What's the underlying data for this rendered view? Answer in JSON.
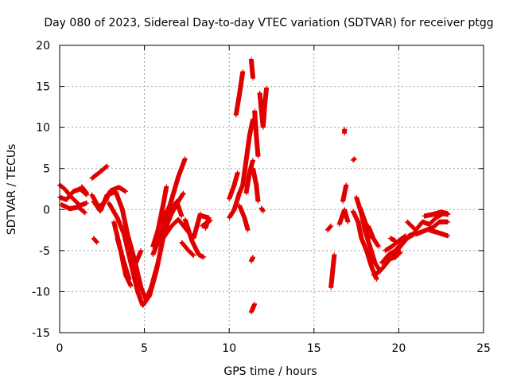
{
  "chart_data": {
    "type": "scatter",
    "title": "Day 080 of 2023, Sidereal Day-to-day VTEC variation (SDTVAR) for receiver ptgg",
    "xlabel": "GPS time / hours",
    "ylabel": "SDTVAR / TECUs",
    "xlim": [
      0,
      25
    ],
    "ylim": [
      -15,
      20
    ],
    "xticks": [
      0,
      5,
      10,
      15,
      20,
      25
    ],
    "yticks": [
      -15,
      -10,
      -5,
      0,
      5,
      10,
      15,
      20
    ],
    "grid": true,
    "marker": "+",
    "series_color": "#e00000",
    "tracks": [
      [
        [
          0.0,
          3.0
        ],
        [
          0.3,
          2.5
        ],
        [
          0.7,
          1.5
        ],
        [
          1.2,
          0.5
        ],
        [
          1.6,
          0.8
        ]
      ],
      [
        [
          0.0,
          1.5
        ],
        [
          0.4,
          1.2
        ],
        [
          0.8,
          2.2
        ],
        [
          1.2,
          2.5
        ],
        [
          1.6,
          1.8
        ]
      ],
      [
        [
          0.1,
          0.6
        ],
        [
          0.6,
          0.1
        ],
        [
          1.1,
          0.3
        ],
        [
          1.5,
          -0.4
        ]
      ],
      [
        [
          1.3,
          2.8
        ],
        [
          1.6,
          2.0
        ]
      ],
      [
        [
          2.0,
          -3.5
        ],
        [
          2.2,
          -4.0
        ]
      ],
      [
        [
          1.9,
          3.8
        ],
        [
          2.4,
          4.6
        ],
        [
          2.8,
          5.3
        ]
      ],
      [
        [
          1.9,
          1.8
        ],
        [
          2.3,
          0.3
        ],
        [
          2.7,
          1.0
        ],
        [
          3.0,
          2.3
        ],
        [
          3.5,
          2.7
        ],
        [
          3.9,
          2.2
        ]
      ],
      [
        [
          2.0,
          1.0
        ],
        [
          2.4,
          -0.2
        ],
        [
          2.8,
          1.8
        ],
        [
          3.2,
          2.1
        ]
      ],
      [
        [
          2.9,
          0.8
        ],
        [
          3.4,
          -1.0
        ],
        [
          3.8,
          -3.0
        ],
        [
          4.2,
          -6.5
        ],
        [
          4.6,
          -10.0
        ],
        [
          4.9,
          -11.7
        ],
        [
          5.3,
          -10.5
        ],
        [
          5.7,
          -7.5
        ],
        [
          6.1,
          -3.5
        ],
        [
          6.5,
          -0.5
        ],
        [
          6.9,
          1.0
        ],
        [
          7.2,
          -0.8
        ]
      ],
      [
        [
          3.3,
          2.2
        ],
        [
          3.7,
          0.0
        ],
        [
          4.0,
          -3.0
        ],
        [
          4.4,
          -6.0
        ],
        [
          4.8,
          -9.5
        ],
        [
          5.1,
          -11.0
        ],
        [
          5.4,
          -9.5
        ],
        [
          5.8,
          -6.5
        ]
      ],
      [
        [
          3.2,
          -1.5
        ],
        [
          3.6,
          -5.0
        ],
        [
          3.9,
          -8.0
        ],
        [
          4.2,
          -9.3
        ]
      ],
      [
        [
          3.4,
          -3.5
        ],
        [
          3.8,
          -6.5
        ],
        [
          4.1,
          -8.5
        ]
      ],
      [
        [
          4.5,
          -6.5
        ],
        [
          4.8,
          -5.0
        ]
      ],
      [
        [
          5.5,
          -4.5
        ],
        [
          5.8,
          -2.5
        ],
        [
          6.1,
          0.5
        ],
        [
          6.3,
          2.8
        ]
      ],
      [
        [
          5.5,
          -5.5
        ],
        [
          5.9,
          -3.5
        ],
        [
          6.3,
          -1.0
        ]
      ],
      [
        [
          6.0,
          -1.5
        ],
        [
          6.5,
          0.5
        ],
        [
          7.0,
          4.0
        ],
        [
          7.4,
          6.2
        ]
      ],
      [
        [
          6.3,
          -2.0
        ],
        [
          6.6,
          -0.5
        ],
        [
          7.0,
          1.0
        ],
        [
          7.3,
          2.0
        ]
      ],
      [
        [
          6.1,
          -3.5
        ],
        [
          6.6,
          -2.0
        ],
        [
          7.0,
          -1.2
        ],
        [
          7.5,
          -2.5
        ],
        [
          7.9,
          -3.5
        ],
        [
          8.1,
          -2.0
        ],
        [
          8.3,
          -0.5
        ]
      ],
      [
        [
          7.4,
          -1.2
        ],
        [
          7.8,
          -3.8
        ],
        [
          8.2,
          -5.5
        ],
        [
          8.5,
          -5.8
        ]
      ],
      [
        [
          7.2,
          -4.0
        ],
        [
          7.6,
          -5.0
        ],
        [
          7.9,
          -5.6
        ]
      ],
      [
        [
          8.4,
          -0.8
        ],
        [
          8.8,
          -1.0
        ]
      ],
      [
        [
          8.4,
          -2.0
        ],
        [
          8.9,
          -1.3
        ]
      ],
      [
        [
          8.6,
          -2.3
        ],
        [
          8.8,
          -1.0
        ]
      ],
      [
        [
          10.0,
          1.3
        ],
        [
          10.3,
          3.0
        ],
        [
          10.5,
          4.5
        ]
      ],
      [
        [
          10.0,
          -1.0
        ],
        [
          10.3,
          0.0
        ],
        [
          10.6,
          2.0
        ],
        [
          10.8,
          3.0
        ]
      ],
      [
        [
          10.4,
          11.5
        ],
        [
          10.6,
          14.0
        ],
        [
          10.8,
          16.8
        ]
      ],
      [
        [
          10.6,
          0.5
        ],
        [
          10.9,
          -1.0
        ],
        [
          11.1,
          -2.5
        ]
      ],
      [
        [
          10.8,
          3.0
        ],
        [
          11.0,
          6.0
        ],
        [
          11.2,
          9.0
        ],
        [
          11.4,
          11.0
        ]
      ],
      [
        [
          11.0,
          2.0
        ],
        [
          11.2,
          4.5
        ],
        [
          11.4,
          6.0
        ]
      ],
      [
        [
          11.3,
          18.3
        ],
        [
          11.4,
          16.0
        ]
      ],
      [
        [
          11.3,
          -6.3
        ],
        [
          11.4,
          -5.8
        ]
      ],
      [
        [
          11.3,
          -12.5
        ],
        [
          11.5,
          -11.5
        ]
      ],
      [
        [
          11.4,
          5.0
        ],
        [
          11.6,
          3.0
        ],
        [
          11.7,
          1.0
        ]
      ],
      [
        [
          11.5,
          12.0
        ],
        [
          11.6,
          9.0
        ],
        [
          11.7,
          6.5
        ]
      ],
      [
        [
          11.8,
          14.2
        ],
        [
          11.9,
          12.0
        ],
        [
          12.0,
          10.0
        ],
        [
          12.1,
          12.8
        ],
        [
          12.2,
          14.8
        ]
      ],
      [
        [
          11.9,
          0.2
        ],
        [
          12.0,
          -0.2
        ]
      ],
      [
        [
          15.8,
          -2.5
        ],
        [
          16.0,
          -2.0
        ]
      ],
      [
        [
          16.0,
          -9.5
        ],
        [
          16.1,
          -7.5
        ],
        [
          16.2,
          -5.5
        ]
      ],
      [
        [
          16.5,
          -1.8
        ],
        [
          16.8,
          0.0
        ],
        [
          17.0,
          -1.5
        ]
      ],
      [
        [
          16.7,
          1.0
        ],
        [
          16.9,
          3.0
        ]
      ],
      [
        [
          16.8,
          9.8
        ],
        [
          16.8,
          9.3
        ]
      ],
      [
        [
          17.3,
          6.0
        ],
        [
          17.4,
          6.2
        ]
      ],
      [
        [
          17.3,
          -0.2
        ],
        [
          17.6,
          -1.5
        ],
        [
          17.8,
          -3.5
        ],
        [
          18.1,
          -5.0
        ],
        [
          18.4,
          -7.0
        ],
        [
          18.7,
          -8.5
        ]
      ],
      [
        [
          17.5,
          1.5
        ],
        [
          17.8,
          -0.5
        ],
        [
          18.0,
          -2.5
        ],
        [
          18.3,
          -4.5
        ],
        [
          18.6,
          -6.5
        ],
        [
          18.9,
          -7.5
        ]
      ],
      [
        [
          17.7,
          0.3
        ],
        [
          18.1,
          -2.0
        ],
        [
          18.3,
          -3.5
        ]
      ],
      [
        [
          18.2,
          -2.0
        ],
        [
          18.5,
          -3.5
        ],
        [
          18.8,
          -4.5
        ]
      ],
      [
        [
          18.5,
          -8.0
        ],
        [
          18.9,
          -7.5
        ],
        [
          19.3,
          -6.5
        ],
        [
          19.7,
          -5.5
        ],
        [
          20.1,
          -4.5
        ],
        [
          20.5,
          -3.5
        ],
        [
          20.9,
          -3.0
        ]
      ],
      [
        [
          19.0,
          -6.5
        ],
        [
          19.4,
          -5.5
        ],
        [
          19.8,
          -5.0
        ],
        [
          20.2,
          -4.0
        ],
        [
          20.6,
          -3.2
        ],
        [
          21.0,
          -2.8
        ]
      ],
      [
        [
          19.2,
          -5.0
        ],
        [
          19.6,
          -4.5
        ],
        [
          20.0,
          -3.8
        ],
        [
          20.4,
          -3.2
        ]
      ],
      [
        [
          19.5,
          -6.0
        ],
        [
          19.8,
          -5.8
        ],
        [
          20.1,
          -5.2
        ]
      ],
      [
        [
          19.5,
          -3.5
        ],
        [
          19.8,
          -3.8
        ]
      ],
      [
        [
          20.5,
          -1.5
        ],
        [
          21.0,
          -2.5
        ],
        [
          21.4,
          -1.5
        ],
        [
          21.8,
          -1.8
        ],
        [
          22.2,
          -1.0
        ],
        [
          22.6,
          -0.5
        ],
        [
          22.9,
          -0.6
        ]
      ],
      [
        [
          21.0,
          -3.0
        ],
        [
          21.5,
          -2.6
        ],
        [
          22.0,
          -2.2
        ],
        [
          22.4,
          -1.5
        ],
        [
          22.9,
          -1.5
        ]
      ],
      [
        [
          21.5,
          -0.8
        ],
        [
          22.0,
          -0.6
        ],
        [
          22.5,
          -0.3
        ],
        [
          22.9,
          -0.5
        ]
      ],
      [
        [
          21.8,
          -2.5
        ],
        [
          22.3,
          -2.8
        ],
        [
          22.9,
          -3.2
        ]
      ]
    ]
  }
}
